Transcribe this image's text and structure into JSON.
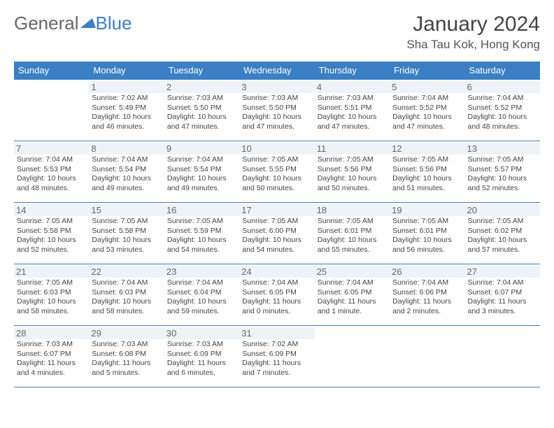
{
  "logo": {
    "text1": "General",
    "text2": "Blue"
  },
  "title": "January 2024",
  "location": "Sha Tau Kok, Hong Kong",
  "colors": {
    "header_bg": "#3b7fc4",
    "header_text": "#ffffff",
    "daynum_bg": "#eef3f8",
    "border": "#3b7fc4",
    "body_text": "#444444"
  },
  "weekdays": [
    "Sunday",
    "Monday",
    "Tuesday",
    "Wednesday",
    "Thursday",
    "Friday",
    "Saturday"
  ],
  "start_offset": 1,
  "days": [
    {
      "n": 1,
      "sunrise": "7:02 AM",
      "sunset": "5:49 PM",
      "daylight": "10 hours and 46 minutes."
    },
    {
      "n": 2,
      "sunrise": "7:03 AM",
      "sunset": "5:50 PM",
      "daylight": "10 hours and 47 minutes."
    },
    {
      "n": 3,
      "sunrise": "7:03 AM",
      "sunset": "5:50 PM",
      "daylight": "10 hours and 47 minutes."
    },
    {
      "n": 4,
      "sunrise": "7:03 AM",
      "sunset": "5:51 PM",
      "daylight": "10 hours and 47 minutes."
    },
    {
      "n": 5,
      "sunrise": "7:04 AM",
      "sunset": "5:52 PM",
      "daylight": "10 hours and 47 minutes."
    },
    {
      "n": 6,
      "sunrise": "7:04 AM",
      "sunset": "5:52 PM",
      "daylight": "10 hours and 48 minutes."
    },
    {
      "n": 7,
      "sunrise": "7:04 AM",
      "sunset": "5:53 PM",
      "daylight": "10 hours and 48 minutes."
    },
    {
      "n": 8,
      "sunrise": "7:04 AM",
      "sunset": "5:54 PM",
      "daylight": "10 hours and 49 minutes."
    },
    {
      "n": 9,
      "sunrise": "7:04 AM",
      "sunset": "5:54 PM",
      "daylight": "10 hours and 49 minutes."
    },
    {
      "n": 10,
      "sunrise": "7:05 AM",
      "sunset": "5:55 PM",
      "daylight": "10 hours and 50 minutes."
    },
    {
      "n": 11,
      "sunrise": "7:05 AM",
      "sunset": "5:56 PM",
      "daylight": "10 hours and 50 minutes."
    },
    {
      "n": 12,
      "sunrise": "7:05 AM",
      "sunset": "5:56 PM",
      "daylight": "10 hours and 51 minutes."
    },
    {
      "n": 13,
      "sunrise": "7:05 AM",
      "sunset": "5:57 PM",
      "daylight": "10 hours and 52 minutes."
    },
    {
      "n": 14,
      "sunrise": "7:05 AM",
      "sunset": "5:58 PM",
      "daylight": "10 hours and 52 minutes."
    },
    {
      "n": 15,
      "sunrise": "7:05 AM",
      "sunset": "5:58 PM",
      "daylight": "10 hours and 53 minutes."
    },
    {
      "n": 16,
      "sunrise": "7:05 AM",
      "sunset": "5:59 PM",
      "daylight": "10 hours and 54 minutes."
    },
    {
      "n": 17,
      "sunrise": "7:05 AM",
      "sunset": "6:00 PM",
      "daylight": "10 hours and 54 minutes."
    },
    {
      "n": 18,
      "sunrise": "7:05 AM",
      "sunset": "6:01 PM",
      "daylight": "10 hours and 55 minutes."
    },
    {
      "n": 19,
      "sunrise": "7:05 AM",
      "sunset": "6:01 PM",
      "daylight": "10 hours and 56 minutes."
    },
    {
      "n": 20,
      "sunrise": "7:05 AM",
      "sunset": "6:02 PM",
      "daylight": "10 hours and 57 minutes."
    },
    {
      "n": 21,
      "sunrise": "7:05 AM",
      "sunset": "6:03 PM",
      "daylight": "10 hours and 58 minutes."
    },
    {
      "n": 22,
      "sunrise": "7:04 AM",
      "sunset": "6:03 PM",
      "daylight": "10 hours and 58 minutes."
    },
    {
      "n": 23,
      "sunrise": "7:04 AM",
      "sunset": "6:04 PM",
      "daylight": "10 hours and 59 minutes."
    },
    {
      "n": 24,
      "sunrise": "7:04 AM",
      "sunset": "6:05 PM",
      "daylight": "11 hours and 0 minutes."
    },
    {
      "n": 25,
      "sunrise": "7:04 AM",
      "sunset": "6:05 PM",
      "daylight": "11 hours and 1 minute."
    },
    {
      "n": 26,
      "sunrise": "7:04 AM",
      "sunset": "6:06 PM",
      "daylight": "11 hours and 2 minutes."
    },
    {
      "n": 27,
      "sunrise": "7:04 AM",
      "sunset": "6:07 PM",
      "daylight": "11 hours and 3 minutes."
    },
    {
      "n": 28,
      "sunrise": "7:03 AM",
      "sunset": "6:07 PM",
      "daylight": "11 hours and 4 minutes."
    },
    {
      "n": 29,
      "sunrise": "7:03 AM",
      "sunset": "6:08 PM",
      "daylight": "11 hours and 5 minutes."
    },
    {
      "n": 30,
      "sunrise": "7:03 AM",
      "sunset": "6:09 PM",
      "daylight": "11 hours and 6 minutes."
    },
    {
      "n": 31,
      "sunrise": "7:02 AM",
      "sunset": "6:09 PM",
      "daylight": "11 hours and 7 minutes."
    }
  ],
  "labels": {
    "sunrise": "Sunrise:",
    "sunset": "Sunset:",
    "daylight": "Daylight:"
  }
}
